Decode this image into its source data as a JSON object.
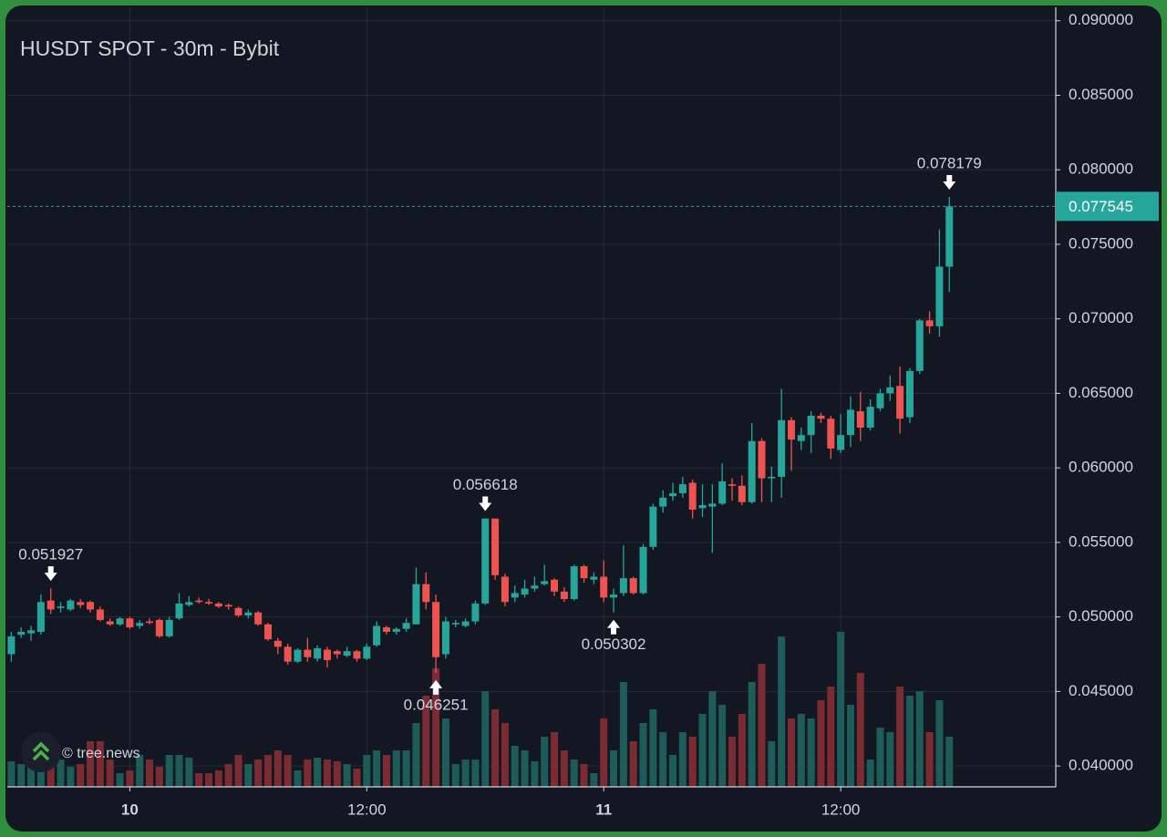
{
  "chart_data": {
    "type": "candlestick",
    "title": "HUSDT SPOT - 30m - Bybit",
    "watermark": "© tree.news",
    "up_color": "#26a69a",
    "down_color": "#ef5350",
    "volume_up_color": "#1d5c58",
    "volume_down_color": "#7b2c33",
    "grid": true,
    "ylim": [
      0.0386,
      0.0909
    ],
    "yticks": [
      {
        "value": 0.04,
        "label": "0.040000"
      },
      {
        "value": 0.045,
        "label": "0.045000"
      },
      {
        "value": 0.05,
        "label": "0.050000"
      },
      {
        "value": 0.055,
        "label": "0.055000"
      },
      {
        "value": 0.06,
        "label": "0.060000"
      },
      {
        "value": 0.065,
        "label": "0.065000"
      },
      {
        "value": 0.07,
        "label": "0.070000"
      },
      {
        "value": 0.075,
        "label": "0.075000"
      },
      {
        "value": 0.08,
        "label": "0.080000"
      },
      {
        "value": 0.085,
        "label": "0.085000"
      },
      {
        "value": 0.09,
        "label": "0.090000"
      }
    ],
    "categories": [
      null,
      null,
      null,
      null,
      null,
      null,
      null,
      null,
      null,
      null,
      null,
      null,
      "10",
      null,
      null,
      null,
      null,
      null,
      null,
      null,
      null,
      null,
      null,
      null,
      null,
      null,
      null,
      null,
      null,
      null,
      null,
      null,
      null,
      null,
      null,
      null,
      "12:00",
      null,
      null,
      null,
      null,
      null,
      null,
      null,
      null,
      null,
      null,
      null,
      null,
      null,
      null,
      null,
      null,
      null,
      null,
      null,
      null,
      null,
      null,
      null,
      "11",
      null,
      null,
      null,
      null,
      null,
      null,
      null,
      null,
      null,
      null,
      null,
      null,
      null,
      null,
      null,
      null,
      null,
      null,
      null,
      null,
      null,
      null,
      null,
      "12:00",
      null,
      null,
      null,
      null,
      null,
      null,
      null,
      null,
      null,
      null,
      null
    ],
    "open": [
      0.0475,
      0.0488,
      0.0489,
      0.049,
      0.0511,
      0.0506,
      0.0505,
      0.051,
      0.051,
      0.0505,
      0.0497,
      0.0495,
      0.0499,
      0.0494,
      0.0497,
      0.0498,
      0.0487,
      0.0499,
      0.0508,
      0.0511,
      0.051,
      0.0509,
      0.0508,
      0.0506,
      0.0501,
      0.0503,
      0.0495,
      0.0484,
      0.048,
      0.047,
      0.0478,
      0.0472,
      0.0478,
      0.0477,
      0.0474,
      0.0477,
      0.0472,
      0.0481,
      0.0493,
      0.049,
      0.0492,
      0.0495,
      0.0522,
      0.051,
      0.0475,
      0.0495,
      0.0494,
      0.0497,
      0.0509,
      0.0566,
      0.0527,
      0.0513,
      0.0515,
      0.0519,
      0.0522,
      0.0525,
      0.0517,
      0.0512,
      0.0534,
      0.0525,
      0.0527,
      0.0513,
      0.0516,
      0.0526,
      0.0516,
      0.0547,
      0.0574,
      0.0581,
      0.0583,
      0.059,
      0.0573,
      0.0574,
      0.0576,
      0.0589,
      0.0588,
      0.0577,
      0.0618,
      0.0593,
      0.0594,
      0.0632,
      0.0618,
      0.0622,
      0.0635,
      0.0633,
      0.0612,
      0.0622,
      0.0638,
      0.0627,
      0.064,
      0.065,
      0.0655,
      0.0634,
      0.0665,
      0.0699,
      0.0695,
      0.0735
    ],
    "high": [
      0.049,
      0.0493,
      0.0494,
      0.0515,
      0.051927,
      0.051,
      0.0512,
      0.0512,
      0.0511,
      0.0507,
      0.0499,
      0.05,
      0.05,
      0.0498,
      0.0499,
      0.0499,
      0.05,
      0.0516,
      0.0514,
      0.0513,
      0.0512,
      0.051,
      0.0509,
      0.0507,
      0.0505,
      0.0504,
      0.0496,
      0.0486,
      0.0482,
      0.0479,
      0.0486,
      0.0481,
      0.048,
      0.0478,
      0.048,
      0.0478,
      0.0482,
      0.0497,
      0.0494,
      0.0493,
      0.0499,
      0.0533,
      0.053,
      0.0515,
      0.05,
      0.0498,
      0.0499,
      0.0511,
      0.056618,
      0.0566,
      0.0529,
      0.0521,
      0.0525,
      0.0527,
      0.0535,
      0.0526,
      0.052,
      0.0535,
      0.0535,
      0.053,
      0.0538,
      0.0519,
      0.0548,
      0.0527,
      0.0549,
      0.0576,
      0.0585,
      0.059,
      0.0594,
      0.0592,
      0.0589,
      0.0589,
      0.0603,
      0.0593,
      0.0595,
      0.063,
      0.062,
      0.0601,
      0.0653,
      0.0634,
      0.0627,
      0.0638,
      0.0637,
      0.0635,
      0.0636,
      0.0648,
      0.0651,
      0.0646,
      0.0653,
      0.0662,
      0.0668,
      0.0667,
      0.07,
      0.0705,
      0.076,
      0.078179
    ],
    "low": [
      0.047,
      0.0486,
      0.0484,
      0.0488,
      0.0502,
      0.0503,
      0.0504,
      0.0506,
      0.0503,
      0.0497,
      0.0494,
      0.0494,
      0.0492,
      0.0492,
      0.0495,
      0.0486,
      0.0486,
      0.0498,
      0.0507,
      0.0509,
      0.0508,
      0.0506,
      0.0505,
      0.05,
      0.0499,
      0.0494,
      0.0484,
      0.0475,
      0.0468,
      0.0469,
      0.047,
      0.047,
      0.0466,
      0.0472,
      0.0473,
      0.047,
      0.0471,
      0.048,
      0.0488,
      0.0488,
      0.049,
      0.0495,
      0.0505,
      0.046251,
      0.0472,
      0.0493,
      0.0493,
      0.0495,
      0.0508,
      0.0525,
      0.0507,
      0.051,
      0.0513,
      0.0517,
      0.0521,
      0.0514,
      0.051,
      0.0511,
      0.0523,
      0.0522,
      0.051,
      0.050302,
      0.0514,
      0.0515,
      0.0515,
      0.0545,
      0.057,
      0.0578,
      0.058,
      0.0566,
      0.0567,
      0.0543,
      0.0575,
      0.0578,
      0.0575,
      0.0576,
      0.0577,
      0.0577,
      0.058,
      0.0598,
      0.0612,
      0.061,
      0.063,
      0.0606,
      0.061,
      0.0614,
      0.0618,
      0.0625,
      0.0638,
      0.0645,
      0.0623,
      0.063,
      0.0663,
      0.069,
      0.0688,
      0.0718
    ],
    "close": [
      0.0487,
      0.049,
      0.0491,
      0.051,
      0.0505,
      0.0507,
      0.0511,
      0.0508,
      0.0505,
      0.0498,
      0.0495,
      0.0499,
      0.0493,
      0.0496,
      0.0496,
      0.0487,
      0.0498,
      0.0509,
      0.051,
      0.051,
      0.0509,
      0.0507,
      0.0507,
      0.0501,
      0.0503,
      0.0495,
      0.0485,
      0.048,
      0.047,
      0.0478,
      0.0473,
      0.0479,
      0.0471,
      0.0475,
      0.0477,
      0.0472,
      0.048,
      0.0494,
      0.049,
      0.0492,
      0.0496,
      0.0522,
      0.051,
      0.0473,
      0.0497,
      0.0496,
      0.0497,
      0.0509,
      0.0566,
      0.0528,
      0.051,
      0.0516,
      0.0519,
      0.0521,
      0.0524,
      0.0517,
      0.0512,
      0.0534,
      0.0526,
      0.0527,
      0.0513,
      0.0515,
      0.0526,
      0.0516,
      0.0547,
      0.0574,
      0.058,
      0.0583,
      0.0589,
      0.0572,
      0.0575,
      0.0576,
      0.0591,
      0.0588,
      0.0577,
      0.0618,
      0.0593,
      0.0594,
      0.0632,
      0.0619,
      0.0622,
      0.0635,
      0.0633,
      0.0613,
      0.0622,
      0.0639,
      0.0627,
      0.0641,
      0.065,
      0.0654,
      0.0633,
      0.0665,
      0.0699,
      0.0695,
      0.0735,
      0.077545
    ],
    "volume": [
      28,
      25,
      45,
      50,
      35,
      30,
      22,
      25,
      50,
      50,
      30,
      15,
      18,
      35,
      30,
      22,
      35,
      35,
      32,
      15,
      15,
      18,
      25,
      35,
      25,
      30,
      35,
      40,
      35,
      18,
      30,
      32,
      30,
      28,
      25,
      20,
      35,
      40,
      35,
      40,
      40,
      70,
      100,
      130,
      75,
      25,
      30,
      30,
      105,
      85,
      70,
      45,
      40,
      28,
      55,
      60,
      40,
      30,
      25,
      15,
      75,
      40,
      115,
      50,
      70,
      85,
      60,
      35,
      60,
      55,
      80,
      105,
      90,
      55,
      80,
      115,
      135,
      50,
      165,
      75,
      80,
      75,
      95,
      110,
      170,
      90,
      125,
      30,
      65,
      60,
      110,
      100,
      105,
      60,
      95,
      55
    ],
    "annotations": [
      0.051927,
      0.056618,
      0.078179,
      0.046251,
      0.050302
    ]
  }
}
